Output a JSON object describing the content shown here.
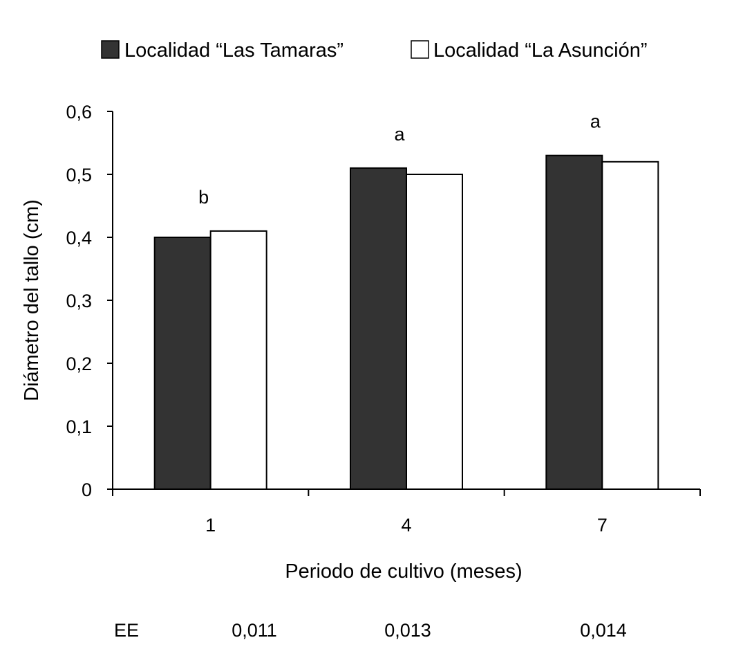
{
  "chart_data": {
    "type": "bar",
    "title": "",
    "xlabel": "Periodo de cultivo (meses)",
    "ylabel": "Diámetro del tallo (cm)",
    "ylim": [
      0,
      0.6
    ],
    "yticks": [
      "0",
      "0,1",
      "0,2",
      "0,3",
      "0,4",
      "0,5",
      "0,6"
    ],
    "categories": [
      "1",
      "4",
      "7"
    ],
    "series": [
      {
        "name": "Localidad “Las Tamaras”",
        "values": [
          0.4,
          0.51,
          0.53
        ],
        "color": "#333333"
      },
      {
        "name": "Localidad “La Asunción”",
        "values": [
          0.41,
          0.5,
          0.52
        ],
        "color": "#ffffff"
      }
    ],
    "annotations": [
      "b",
      "a",
      "a"
    ],
    "ee_label": "EE",
    "ee_values": [
      "0,011",
      "0,013",
      "0,014"
    ],
    "legend_position": "top",
    "grid": false
  }
}
